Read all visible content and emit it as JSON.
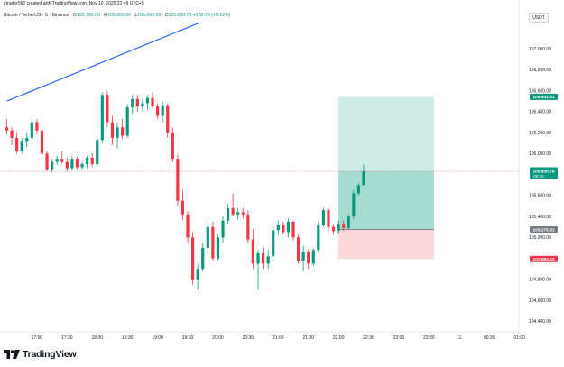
{
  "header": {
    "attribution": "jrtrader562 created with TradingView.com, Nov 10, 2025 22:49 UTC+5"
  },
  "legend": {
    "symbol": "Bitcoin / TetherUS · 5 · Binance",
    "o_label": "O",
    "o_value": "105,700.00",
    "h_label": "H",
    "h_value": "105,900.00",
    "l_label": "L",
    "l_value": "105,699.99",
    "c_label": "C",
    "c_value": "105,830.78",
    "change": "+130.78 (+0.12%)"
  },
  "unit": "USDT",
  "footer": {
    "logo_text": "TradingView"
  },
  "colors": {
    "up": "#089981",
    "down": "#f23645",
    "trendline": "#2962ff",
    "target": "#089981",
    "stop": "#f23645"
  },
  "chart_data": {
    "type": "candlestick",
    "ylim": [
      104300,
      107250
    ],
    "y_ticks": [
      {
        "v": 107000,
        "label": "107,000.00"
      },
      {
        "v": 106800,
        "label": "106,800.00"
      },
      {
        "v": 106600,
        "label": "106,600.00"
      },
      {
        "v": 106400,
        "label": "106,400.00"
      },
      {
        "v": 106200,
        "label": "106,200.00"
      },
      {
        "v": 106000,
        "label": "106,000.00"
      },
      {
        "v": 105600,
        "label": "105,600.00"
      },
      {
        "v": 105400,
        "label": "105,400.00"
      },
      {
        "v": 105200,
        "label": "105,200.00"
      },
      {
        "v": 104800,
        "label": "104,800.00"
      },
      {
        "v": 104600,
        "label": "104,600.00"
      },
      {
        "v": 104400,
        "label": "104,400.00"
      }
    ],
    "x_ticks": [
      {
        "i": 6,
        "label": "17:00"
      },
      {
        "i": 12,
        "label": "17:30"
      },
      {
        "i": 18,
        "label": "18:00"
      },
      {
        "i": 24,
        "label": "18:30"
      },
      {
        "i": 30,
        "label": "19:00"
      },
      {
        "i": 36,
        "label": "19:30"
      },
      {
        "i": 42,
        "label": "20:00"
      },
      {
        "i": 48,
        "label": "20:30"
      },
      {
        "i": 54,
        "label": "21:00"
      },
      {
        "i": 60,
        "label": "21:30"
      },
      {
        "i": 66,
        "label": "22:00"
      },
      {
        "i": 72,
        "label": "22:30"
      },
      {
        "i": 78,
        "label": "23:00"
      },
      {
        "i": 84,
        "label": "23:30"
      },
      {
        "i": 90,
        "label": "11"
      },
      {
        "i": 96,
        "label": "00:30"
      },
      {
        "i": 102,
        "label": "01:00"
      }
    ],
    "candles": [
      [
        106250,
        106330,
        106180,
        106220
      ],
      [
        106220,
        106250,
        106080,
        106150
      ],
      [
        106150,
        106200,
        106000,
        106020
      ],
      [
        106020,
        106150,
        106000,
        106120
      ],
      [
        106120,
        106200,
        106060,
        106150
      ],
      [
        106150,
        106320,
        106110,
        106300
      ],
      [
        106300,
        106330,
        106180,
        106220
      ],
      [
        106220,
        106260,
        105980,
        106000
      ],
      [
        106000,
        106020,
        105830,
        105850
      ],
      [
        105850,
        105950,
        105820,
        105920
      ],
      [
        105920,
        105980,
        105890,
        105950
      ],
      [
        105950,
        106020,
        105900,
        105920
      ],
      [
        105920,
        105960,
        105830,
        105860
      ],
      [
        105860,
        105980,
        105840,
        105950
      ],
      [
        105950,
        105970,
        105850,
        105870
      ],
      [
        105870,
        105920,
        105850,
        105900
      ],
      [
        105900,
        105980,
        105860,
        105960
      ],
      [
        105960,
        106000,
        105870,
        105900
      ],
      [
        105900,
        106150,
        105880,
        106130
      ],
      [
        106130,
        106580,
        106100,
        106560
      ],
      [
        106560,
        106600,
        106250,
        106300
      ],
      [
        106300,
        106360,
        106080,
        106150
      ],
      [
        106150,
        106300,
        106050,
        106250
      ],
      [
        106250,
        106330,
        106140,
        106170
      ],
      [
        106170,
        106470,
        106150,
        106440
      ],
      [
        106440,
        106560,
        106380,
        106520
      ],
      [
        106520,
        106560,
        106400,
        106450
      ],
      [
        106450,
        106520,
        106400,
        106480
      ],
      [
        106480,
        106560,
        106420,
        106530
      ],
      [
        106530,
        106580,
        106430,
        106450
      ],
      [
        106450,
        106480,
        106330,
        106360
      ],
      [
        106360,
        106500,
        106300,
        106460
      ],
      [
        106460,
        106480,
        106150,
        106200
      ],
      [
        106200,
        106250,
        105920,
        105950
      ],
      [
        105950,
        105990,
        105500,
        105550
      ],
      [
        105550,
        105650,
        105370,
        105420
      ],
      [
        105420,
        105450,
        105150,
        105200
      ],
      [
        105200,
        105250,
        104750,
        104800
      ],
      [
        104800,
        104950,
        104700,
        104900
      ],
      [
        104900,
        105150,
        104880,
        105100
      ],
      [
        105100,
        105350,
        105050,
        105300
      ],
      [
        105300,
        105350,
        104980,
        105000
      ],
      [
        105000,
        105230,
        104980,
        105200
      ],
      [
        105200,
        105400,
        105150,
        105360
      ],
      [
        105360,
        105520,
        105330,
        105480
      ],
      [
        105480,
        105620,
        105400,
        105420
      ],
      [
        105420,
        105480,
        105370,
        105440
      ],
      [
        105440,
        105480,
        105380,
        105420
      ],
      [
        105420,
        105460,
        105150,
        105180
      ],
      [
        105180,
        105280,
        104900,
        104950
      ],
      [
        104950,
        105080,
        104700,
        105050
      ],
      [
        105050,
        105100,
        104900,
        104950
      ],
      [
        104950,
        105080,
        104900,
        105020
      ],
      [
        105020,
        105300,
        104980,
        105270
      ],
      [
        105270,
        105360,
        105220,
        105320
      ],
      [
        105320,
        105350,
        105230,
        105250
      ],
      [
        105250,
        105380,
        105200,
        105350
      ],
      [
        105350,
        105360,
        105170,
        105200
      ],
      [
        105200,
        105230,
        104950,
        104980
      ],
      [
        104980,
        105120,
        104880,
        105060
      ],
      [
        105060,
        105090,
        104900,
        104950
      ],
      [
        104950,
        105100,
        104930,
        105080
      ],
      [
        105080,
        105350,
        105050,
        105320
      ],
      [
        105320,
        105480,
        105300,
        105460
      ],
      [
        105460,
        105480,
        105260,
        105300
      ],
      [
        105300,
        105330,
        105230,
        105260
      ],
      [
        105260,
        105360,
        105240,
        105330
      ],
      [
        105330,
        105360,
        105260,
        105290
      ],
      [
        105290,
        105420,
        105280,
        105400
      ],
      [
        105400,
        105650,
        105380,
        105620
      ],
      [
        105620,
        105720,
        105600,
        105700
      ],
      [
        105700,
        105900,
        105699.99,
        105830.78
      ]
    ],
    "last_close": 105830.78,
    "trendline": {
      "i1": 0,
      "v1": 106500,
      "i2": 41,
      "v2": 107300
    },
    "position": {
      "i_start": 66,
      "i_end": 85,
      "target": 106541.81,
      "entry": 105275.81,
      "stop": 104994.43
    },
    "price_labels": {
      "target": "106,541.81",
      "current": "105,830.78",
      "countdown": "00:40",
      "entry": "105,275.81",
      "stop": "104,994.43"
    }
  }
}
